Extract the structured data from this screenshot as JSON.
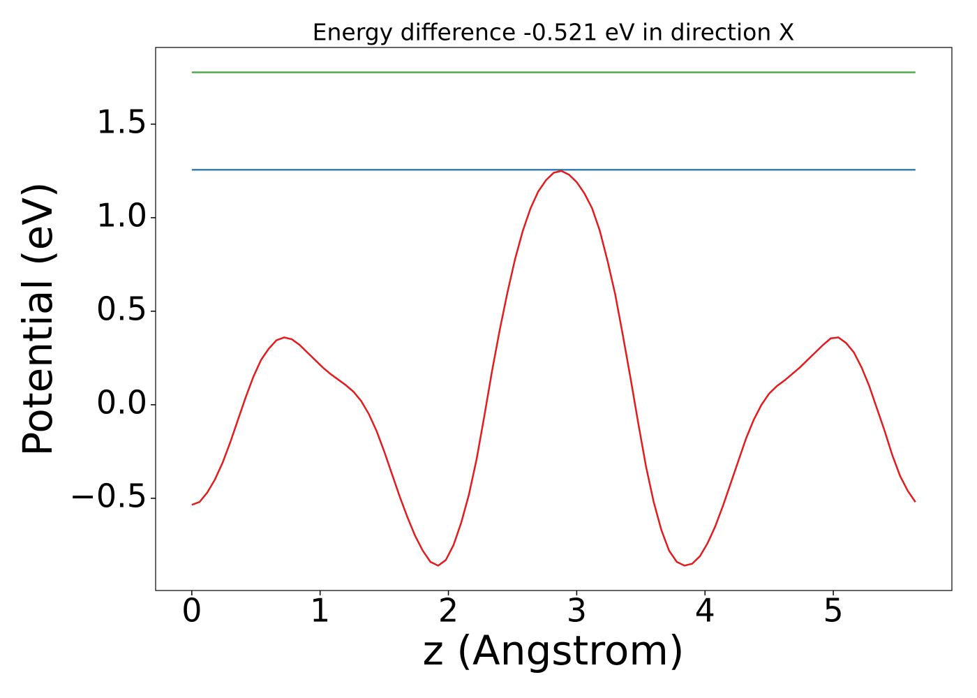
{
  "chart_data": {
    "type": "line",
    "title": "Energy difference -0.521 eV in direction X",
    "xlabel": "z (Angstrom)",
    "ylabel": "Potential (eV)",
    "xlim": [
      -0.282,
      5.924
    ],
    "ylim": [
      -0.993,
      1.91
    ],
    "xticks": [
      0,
      1,
      2,
      3,
      4,
      5
    ],
    "yticks": [
      {
        "value": -0.5,
        "label": "−0.5"
      },
      {
        "value": 0,
        "label": "0.0"
      },
      {
        "value": 0.5,
        "label": "0.5"
      },
      {
        "value": 1,
        "label": "1.0"
      },
      {
        "value": 1.5,
        "label": "1.5"
      }
    ],
    "series": [
      {
        "color": "#4daf4a",
        "x": [
          0,
          5.64
        ],
        "values": [
          1.777,
          1.777
        ]
      },
      {
        "color": "#377eb8",
        "x": [
          0,
          5.64
        ],
        "values": [
          1.256,
          1.256
        ]
      },
      {
        "color": "#e41a1c",
        "x": [
          0,
          0.06,
          0.12,
          0.18,
          0.24,
          0.3,
          0.36,
          0.42,
          0.48,
          0.54,
          0.6,
          0.66,
          0.72,
          0.78,
          0.84,
          0.9,
          0.96,
          1.02,
          1.08,
          1.14,
          1.2,
          1.26,
          1.32,
          1.38,
          1.44,
          1.5,
          1.56,
          1.62,
          1.68,
          1.74,
          1.8,
          1.86,
          1.92,
          1.98,
          2.04,
          2.1,
          2.16,
          2.22,
          2.28,
          2.34,
          2.4,
          2.46,
          2.52,
          2.58,
          2.64,
          2.7,
          2.76,
          2.82,
          2.88,
          2.94,
          3.0,
          3.06,
          3.12,
          3.18,
          3.24,
          3.3,
          3.36,
          3.42,
          3.48,
          3.54,
          3.6,
          3.66,
          3.72,
          3.78,
          3.84,
          3.9,
          3.96,
          4.02,
          4.08,
          4.14,
          4.2,
          4.26,
          4.32,
          4.38,
          4.44,
          4.5,
          4.56,
          4.62,
          4.68,
          4.74,
          4.8,
          4.86,
          4.92,
          4.98,
          5.04,
          5.1,
          5.16,
          5.22,
          5.28,
          5.34,
          5.4,
          5.46,
          5.52,
          5.58,
          5.64
        ],
        "values": [
          -0.535,
          -0.52,
          -0.47,
          -0.4,
          -0.31,
          -0.2,
          -0.08,
          0.04,
          0.15,
          0.24,
          0.3,
          0.345,
          0.36,
          0.35,
          0.32,
          0.28,
          0.24,
          0.2,
          0.165,
          0.135,
          0.105,
          0.07,
          0.02,
          -0.05,
          -0.14,
          -0.25,
          -0.37,
          -0.49,
          -0.6,
          -0.7,
          -0.78,
          -0.84,
          -0.86,
          -0.83,
          -0.75,
          -0.63,
          -0.48,
          -0.29,
          -0.06,
          0.18,
          0.4,
          0.6,
          0.78,
          0.93,
          1.05,
          1.14,
          1.2,
          1.24,
          1.25,
          1.23,
          1.19,
          1.13,
          1.05,
          0.93,
          0.77,
          0.59,
          0.37,
          0.14,
          -0.1,
          -0.33,
          -0.52,
          -0.67,
          -0.78,
          -0.84,
          -0.86,
          -0.85,
          -0.81,
          -0.74,
          -0.65,
          -0.54,
          -0.42,
          -0.3,
          -0.18,
          -0.08,
          0.0,
          0.06,
          0.1,
          0.13,
          0.165,
          0.2,
          0.24,
          0.28,
          0.32,
          0.355,
          0.36,
          0.33,
          0.28,
          0.2,
          0.1,
          -0.02,
          -0.14,
          -0.27,
          -0.38,
          -0.46,
          -0.52
        ]
      }
    ]
  }
}
